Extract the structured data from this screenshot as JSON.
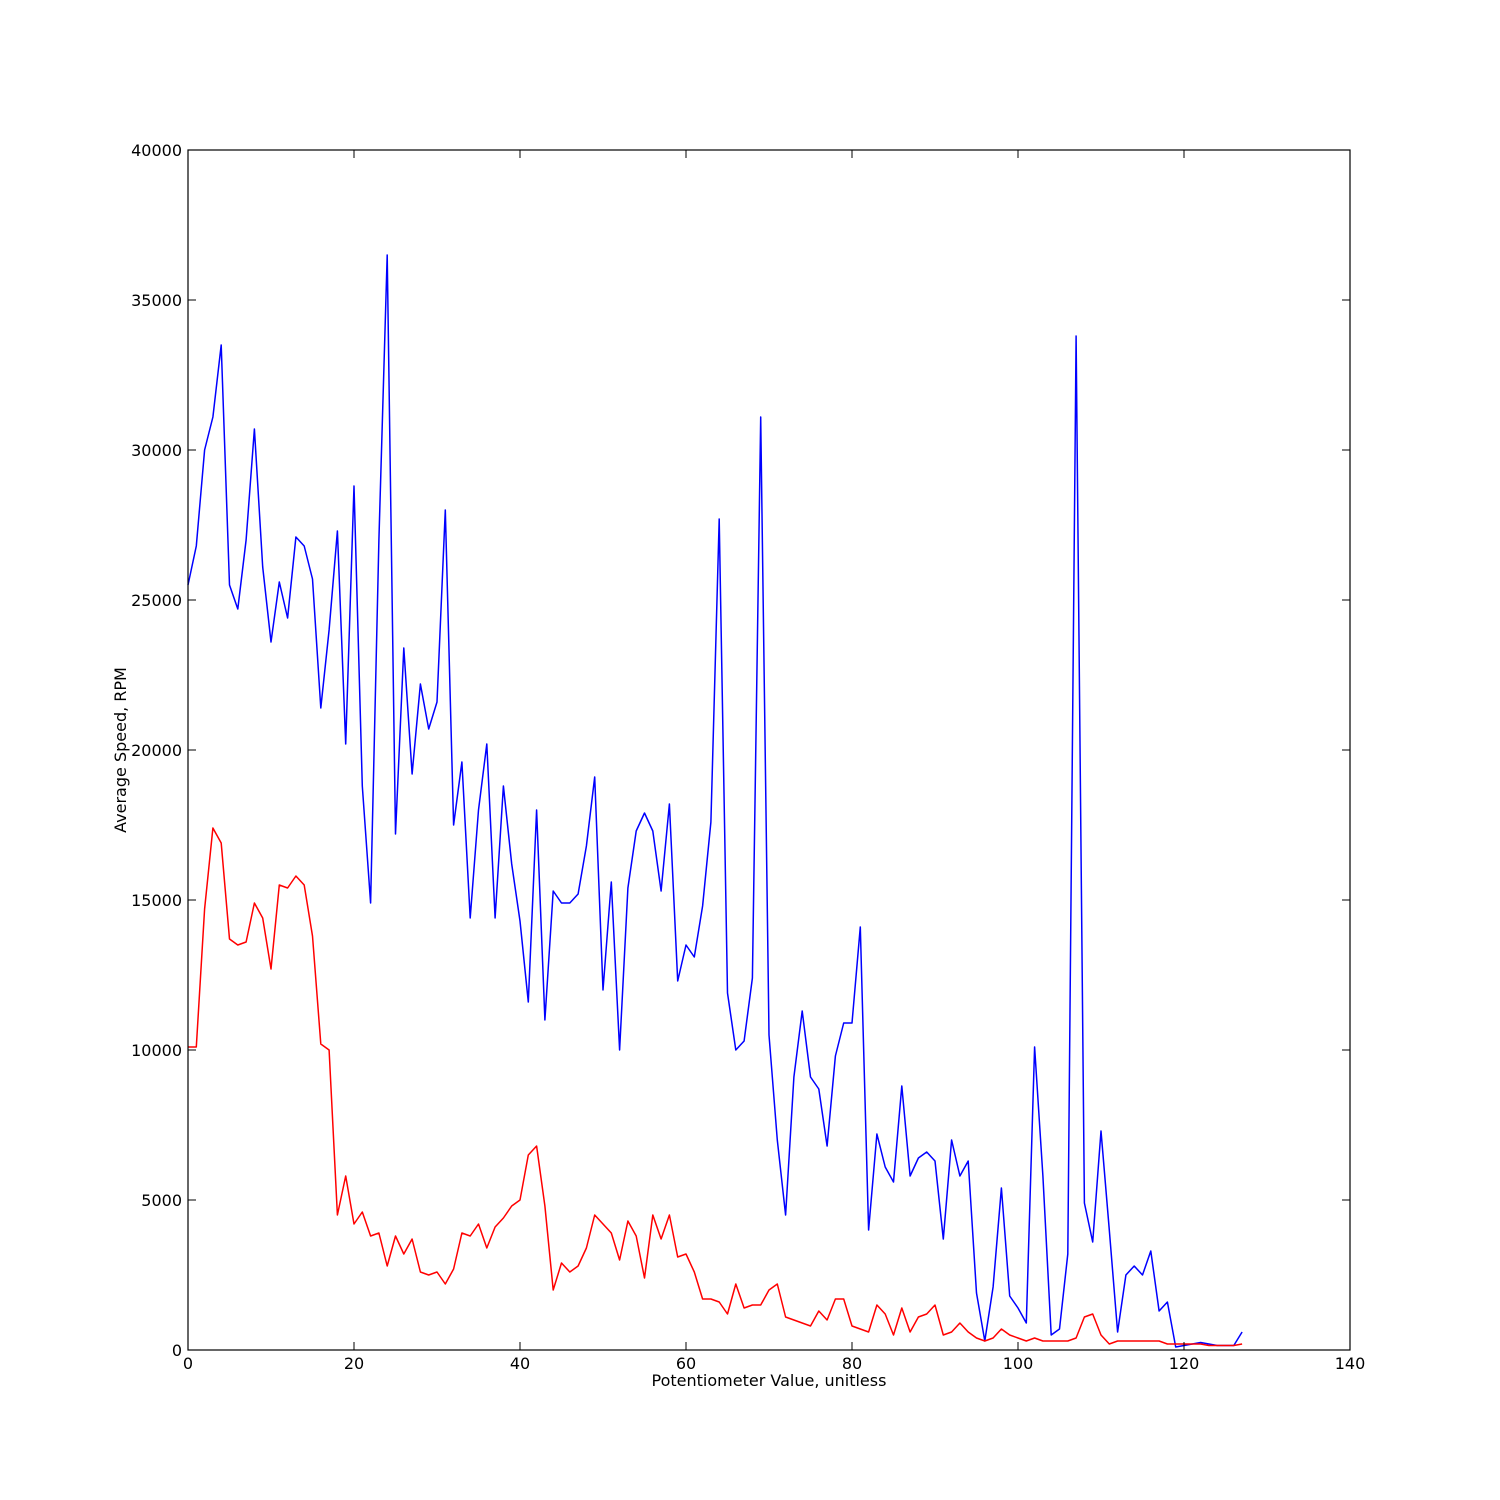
{
  "chart_data": {
    "type": "line",
    "title": "",
    "xlabel": "Potentiometer Value, unitless",
    "ylabel": "Average Speed, RPM",
    "xlim": [
      0,
      140
    ],
    "ylim": [
      0,
      40000
    ],
    "xticks": [
      0,
      20,
      40,
      60,
      80,
      100,
      120,
      140
    ],
    "yticks": [
      0,
      5000,
      10000,
      15000,
      20000,
      25000,
      30000,
      35000,
      40000
    ],
    "grid": false,
    "legend": "none",
    "series": [
      {
        "color": "#0000ff",
        "x": [
          0,
          1,
          2,
          3,
          4,
          5,
          6,
          7,
          8,
          9,
          10,
          11,
          12,
          13,
          14,
          15,
          16,
          17,
          18,
          19,
          20,
          21,
          22,
          23,
          24,
          25,
          26,
          27,
          28,
          29,
          30,
          31,
          32,
          33,
          34,
          35,
          36,
          37,
          38,
          39,
          40,
          41,
          42,
          43,
          44,
          45,
          46,
          47,
          48,
          49,
          50,
          51,
          52,
          53,
          54,
          55,
          56,
          57,
          58,
          59,
          60,
          61,
          62,
          63,
          64,
          65,
          66,
          67,
          68,
          69,
          70,
          71,
          72,
          73,
          74,
          75,
          76,
          77,
          78,
          79,
          80,
          81,
          82,
          83,
          84,
          85,
          86,
          87,
          88,
          89,
          90,
          91,
          92,
          93,
          94,
          95,
          96,
          97,
          98,
          99,
          100,
          101,
          102,
          103,
          104,
          105,
          106,
          107,
          108,
          109,
          110,
          111,
          112,
          113,
          114,
          115,
          116,
          117,
          118,
          119,
          120,
          121,
          122,
          123,
          124,
          125,
          126,
          127
        ],
        "y": [
          25500,
          26800,
          30000,
          31100,
          33500,
          25500,
          24700,
          27000,
          30700,
          26100,
          23600,
          25600,
          24400,
          27100,
          26800,
          25700,
          21400,
          24000,
          27300,
          20200,
          28800,
          18800,
          14900,
          27000,
          36500,
          17200,
          23400,
          19200,
          22200,
          20700,
          21600,
          28000,
          17500,
          19600,
          14400,
          18000,
          20200,
          14400,
          18800,
          16200,
          14300,
          11600,
          18000,
          11000,
          15300,
          14900,
          14900,
          15200,
          16800,
          19100,
          12000,
          15600,
          10000,
          15400,
          17300,
          17900,
          17300,
          15300,
          18200,
          12300,
          13500,
          13100,
          14800,
          17600,
          27700,
          11900,
          10000,
          10300,
          12400,
          31100,
          10500,
          7000,
          4500,
          9100,
          11300,
          9100,
          8700,
          6800,
          9800,
          10900,
          10900,
          14100,
          4000,
          7200,
          6100,
          5600,
          8800,
          5800,
          6400,
          6600,
          6300,
          3700,
          7000,
          5800,
          6300,
          1900,
          300,
          2100,
          5400,
          1800,
          1400,
          900,
          10100,
          5800,
          500,
          700,
          3200,
          33800,
          4900,
          3600,
          7300,
          4000,
          600,
          2500,
          2800,
          2500,
          3300,
          1300,
          1600,
          100,
          150,
          200,
          250,
          200,
          150,
          150,
          150,
          600
        ]
      },
      {
        "color": "#ff0000",
        "x": [
          0,
          1,
          2,
          3,
          4,
          5,
          6,
          7,
          8,
          9,
          10,
          11,
          12,
          13,
          14,
          15,
          16,
          17,
          18,
          19,
          20,
          21,
          22,
          23,
          24,
          25,
          26,
          27,
          28,
          29,
          30,
          31,
          32,
          33,
          34,
          35,
          36,
          37,
          38,
          39,
          40,
          41,
          42,
          43,
          44,
          45,
          46,
          47,
          48,
          49,
          50,
          51,
          52,
          53,
          54,
          55,
          56,
          57,
          58,
          59,
          60,
          61,
          62,
          63,
          64,
          65,
          66,
          67,
          68,
          69,
          70,
          71,
          72,
          73,
          74,
          75,
          76,
          77,
          78,
          79,
          80,
          81,
          82,
          83,
          84,
          85,
          86,
          87,
          88,
          89,
          90,
          91,
          92,
          93,
          94,
          95,
          96,
          97,
          98,
          99,
          100,
          101,
          102,
          103,
          104,
          105,
          106,
          107,
          108,
          109,
          110,
          111,
          112,
          113,
          114,
          115,
          116,
          117,
          118,
          119,
          120,
          121,
          122,
          123,
          124,
          125,
          126,
          127
        ],
        "y": [
          10100,
          10100,
          14700,
          17400,
          16900,
          13700,
          13500,
          13600,
          14900,
          14400,
          12700,
          15500,
          15400,
          15800,
          15500,
          13800,
          10200,
          10000,
          4500,
          5800,
          4200,
          4600,
          3800,
          3900,
          2800,
          3800,
          3200,
          3700,
          2600,
          2500,
          2600,
          2200,
          2700,
          3900,
          3800,
          4200,
          3400,
          4100,
          4400,
          4800,
          5000,
          6500,
          6800,
          4800,
          2000,
          2900,
          2600,
          2800,
          3400,
          4500,
          4200,
          3900,
          3000,
          4300,
          3800,
          2400,
          4500,
          3700,
          4500,
          3100,
          3200,
          2600,
          1700,
          1700,
          1600,
          1200,
          2200,
          1400,
          1500,
          1500,
          2000,
          2200,
          1100,
          1000,
          900,
          800,
          1300,
          1000,
          1700,
          1700,
          800,
          700,
          600,
          1500,
          1200,
          500,
          1400,
          600,
          1100,
          1200,
          1500,
          500,
          600,
          900,
          600,
          400,
          300,
          400,
          700,
          500,
          400,
          300,
          400,
          300,
          300,
          300,
          300,
          400,
          1100,
          1200,
          500,
          200,
          300,
          300,
          300,
          300,
          300,
          300,
          200,
          200,
          200,
          200,
          200,
          150,
          150,
          150,
          150,
          200
        ]
      }
    ]
  }
}
